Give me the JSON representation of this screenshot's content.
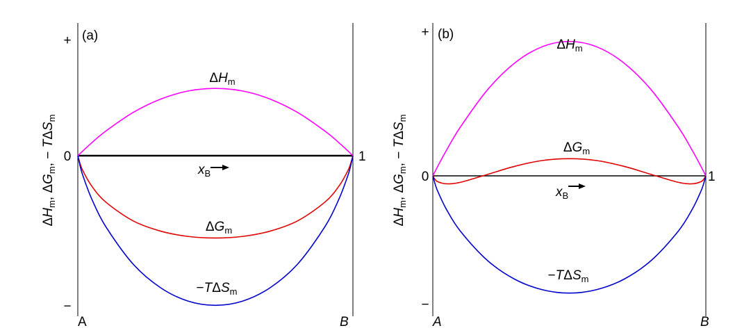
{
  "chart_data": [
    {
      "type": "line",
      "panel_label": "(a)",
      "x": [
        0,
        0.01,
        0.02,
        0.05,
        0.1,
        0.2,
        0.3,
        0.4,
        0.5,
        0.6,
        0.7,
        0.8,
        0.9,
        0.95,
        0.98,
        0.99,
        1
      ],
      "xlim": [
        0,
        1
      ],
      "xticks": [
        {
          "value": 1,
          "label": "1"
        }
      ],
      "ylim": [
        -1.383,
        1.144
      ],
      "yticks": [
        {
          "value": 1,
          "label": "+"
        },
        {
          "value": 0,
          "label": "0"
        },
        {
          "value": -1.29,
          "label": "−"
        }
      ],
      "endpoints": [
        "A",
        "B"
      ],
      "x_label": [
        {
          "t": "x",
          "style": "italic"
        },
        {
          "t": "B",
          "style": "sub"
        }
      ],
      "y_label": [
        {
          "t": "Δ"
        },
        {
          "t": "H",
          "style": "italic"
        },
        {
          "t": "m",
          "style": "sub"
        },
        {
          "t": ", Δ"
        },
        {
          "t": "G",
          "style": "italic"
        },
        {
          "t": "m",
          "style": "sub"
        },
        {
          "t": ", − "
        },
        {
          "t": "T",
          "style": "italic"
        },
        {
          "t": "Δ"
        },
        {
          "t": "S",
          "style": "italic"
        },
        {
          "t": "m",
          "style": "sub"
        }
      ],
      "series": [
        {
          "label": [
            {
              "t": "Δ"
            },
            {
              "t": "H",
              "style": "italic"
            },
            {
              "t": "m",
              "style": "sub"
            }
          ],
          "color": "#ff00ff",
          "values": [
            0,
            0.023,
            0.045,
            0.11,
            0.209,
            0.371,
            0.487,
            0.557,
            0.58,
            0.557,
            0.487,
            0.371,
            0.209,
            0.11,
            0.045,
            0.023,
            0
          ]
        },
        {
          "label": [
            {
              "t": "Δ"
            },
            {
              "t": "G",
              "style": "italic"
            },
            {
              "t": "m",
              "style": "sub"
            }
          ],
          "color": "#e00000",
          "values": [
            0,
            -0.081,
            -0.137,
            -0.259,
            -0.396,
            -0.56,
            -0.649,
            -0.695,
            -0.709,
            -0.695,
            -0.649,
            -0.56,
            -0.396,
            -0.259,
            -0.137,
            -0.081,
            0
          ]
        },
        {
          "label": [
            {
              "t": "−"
            },
            {
              "t": "T",
              "style": "italic"
            },
            {
              "t": "Δ"
            },
            {
              "t": "S",
              "style": "italic"
            },
            {
              "t": "m",
              "style": "sub"
            }
          ],
          "color": "#0000cc",
          "values": [
            0,
            -0.104,
            -0.182,
            -0.369,
            -0.605,
            -0.931,
            -1.136,
            -1.252,
            -1.289,
            -1.252,
            -1.136,
            -0.931,
            -0.605,
            -0.369,
            -0.182,
            -0.104,
            0
          ]
        }
      ]
    },
    {
      "type": "line",
      "panel_label": "(b)",
      "x": [
        0,
        0.01,
        0.02,
        0.05,
        0.1,
        0.2,
        0.3,
        0.4,
        0.5,
        0.6,
        0.7,
        0.8,
        0.9,
        0.95,
        0.98,
        0.99,
        1
      ],
      "xlim": [
        0,
        1
      ],
      "xticks": [
        {
          "value": 1,
          "label": "1"
        }
      ],
      "ylim": [
        -0.971,
        1.058
      ],
      "yticks": [
        {
          "value": 1,
          "label": "+"
        },
        {
          "value": 0,
          "label": "0"
        },
        {
          "value": -0.885,
          "label": "−"
        }
      ],
      "endpoints": [
        "A",
        "B"
      ],
      "x_label": [
        {
          "t": "x",
          "style": "italic"
        },
        {
          "t": "B",
          "style": "sub"
        }
      ],
      "y_label": [
        {
          "t": "Δ"
        },
        {
          "t": "H",
          "style": "italic"
        },
        {
          "t": "m",
          "style": "sub"
        },
        {
          "t": ", Δ"
        },
        {
          "t": "G",
          "style": "italic"
        },
        {
          "t": "m",
          "style": "sub"
        },
        {
          "t": ", − "
        },
        {
          "t": "T",
          "style": "italic"
        },
        {
          "t": "Δ"
        },
        {
          "t": "S",
          "style": "italic"
        },
        {
          "t": "m",
          "style": "sub"
        }
      ],
      "series": [
        {
          "label": [
            {
              "t": "Δ"
            },
            {
              "t": "H",
              "style": "italic"
            },
            {
              "t": "m",
              "style": "sub"
            }
          ],
          "color": "#ff00ff",
          "values": [
            0,
            0.037,
            0.073,
            0.177,
            0.335,
            0.595,
            0.781,
            0.893,
            0.93,
            0.893,
            0.781,
            0.595,
            0.335,
            0.177,
            0.073,
            0.037,
            0
          ]
        },
        {
          "label": [
            {
              "t": "Δ"
            },
            {
              "t": "G",
              "style": "italic"
            },
            {
              "t": "m",
              "style": "sub"
            }
          ],
          "color": "#e00000",
          "values": [
            0,
            -0.029,
            -0.042,
            -0.055,
            -0.045,
            0.01,
            0.066,
            0.106,
            0.119,
            0.106,
            0.066,
            0.01,
            -0.045,
            -0.055,
            -0.042,
            -0.029,
            0
          ]
        },
        {
          "label": [
            {
              "t": "−"
            },
            {
              "t": "T",
              "style": "italic"
            },
            {
              "t": "Δ"
            },
            {
              "t": "S",
              "style": "italic"
            },
            {
              "t": "m",
              "style": "sub"
            }
          ],
          "color": "#0000cc",
          "values": [
            0,
            -0.066,
            -0.115,
            -0.232,
            -0.38,
            -0.585,
            -0.715,
            -0.787,
            -0.811,
            -0.787,
            -0.715,
            -0.585,
            -0.38,
            -0.232,
            -0.115,
            -0.066,
            0
          ]
        }
      ]
    }
  ]
}
